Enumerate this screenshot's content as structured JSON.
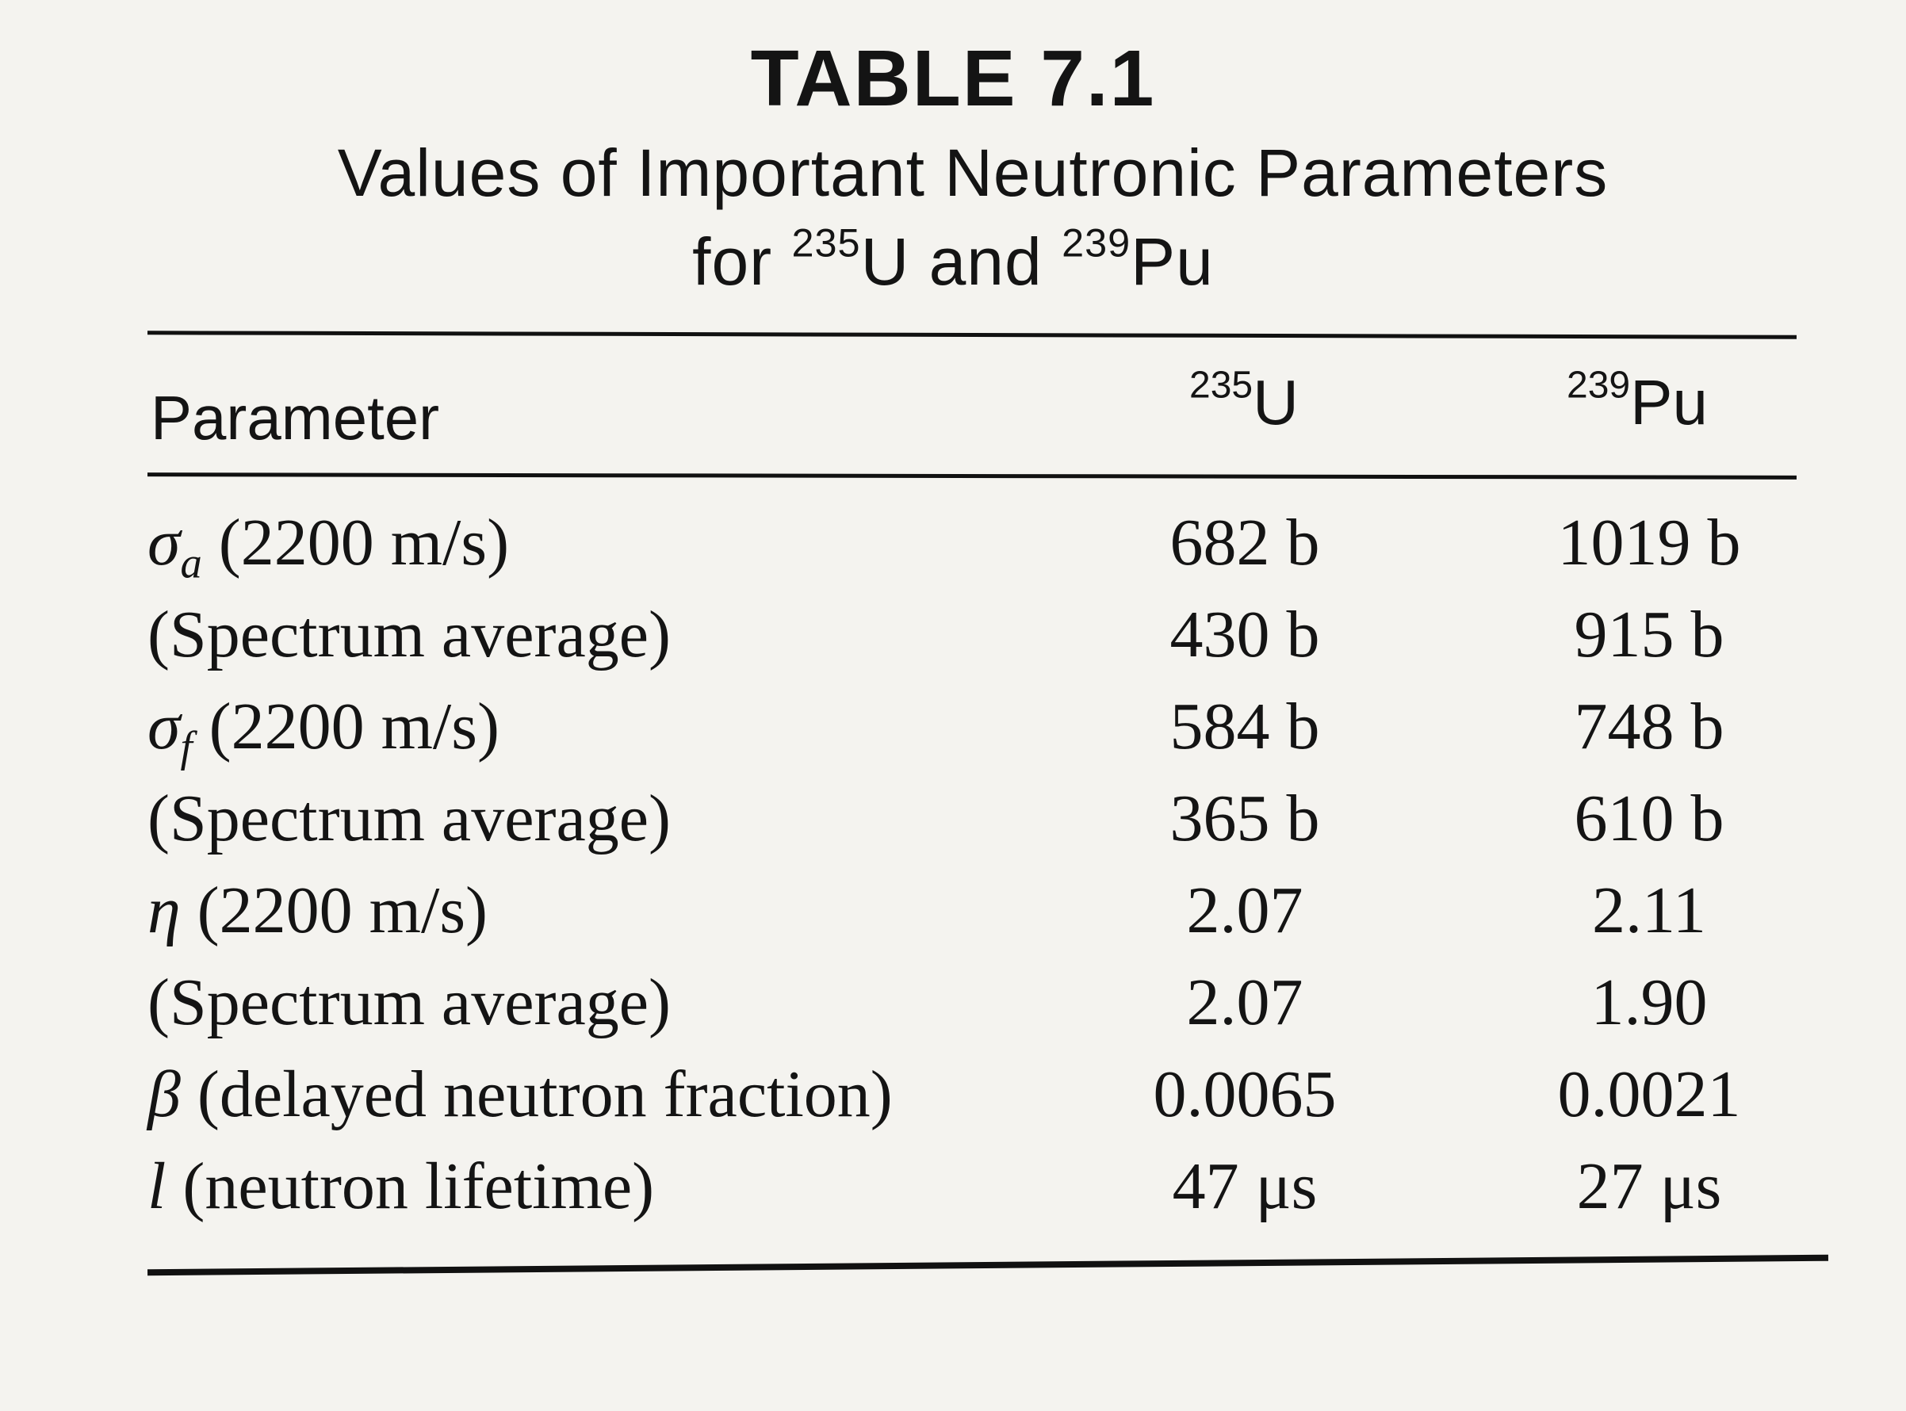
{
  "table": {
    "number": "TABLE 7.1",
    "caption_line1": "Values of Important Neutronic Parameters",
    "caption_line2_prefix": "for ",
    "caption_iso1_mass": "235",
    "caption_iso1_symbol": "U",
    "caption_and": " and ",
    "caption_iso2_mass": "239",
    "caption_iso2_symbol": "Pu"
  },
  "columns": {
    "parameter": "Parameter",
    "u235_mass": "235",
    "u235_symbol": "U",
    "pu239_mass": "239",
    "pu239_symbol": "Pu"
  },
  "rows": [
    {
      "symbol": "σ",
      "subscript": "a",
      "label": " (2200 m/s)",
      "u235": "682 b",
      "pu239": "1019 b"
    },
    {
      "symbol": "",
      "subscript": "",
      "label": "(Spectrum average)",
      "u235": "430 b",
      "pu239": "915 b"
    },
    {
      "symbol": "σ",
      "subscript": "f",
      "label": " (2200 m/s)",
      "u235": "584 b",
      "pu239": "748 b"
    },
    {
      "symbol": "",
      "subscript": "",
      "label": "(Spectrum average)",
      "u235": "365 b",
      "pu239": "610 b"
    },
    {
      "symbol": "η",
      "subscript": "",
      "label": " (2200 m/s)",
      "u235": "2.07",
      "pu239": "2.11"
    },
    {
      "symbol": "",
      "subscript": "",
      "label": "(Spectrum average)",
      "u235": "2.07",
      "pu239": "1.90"
    },
    {
      "symbol": "β",
      "subscript": "",
      "label": " (delayed neutron fraction)",
      "u235": "0.0065",
      "pu239": "0.0021"
    },
    {
      "symbol": "l",
      "subscript": "",
      "label": " (neutron lifetime)",
      "u235": "47 μs",
      "pu239": "27 μs"
    }
  ]
}
